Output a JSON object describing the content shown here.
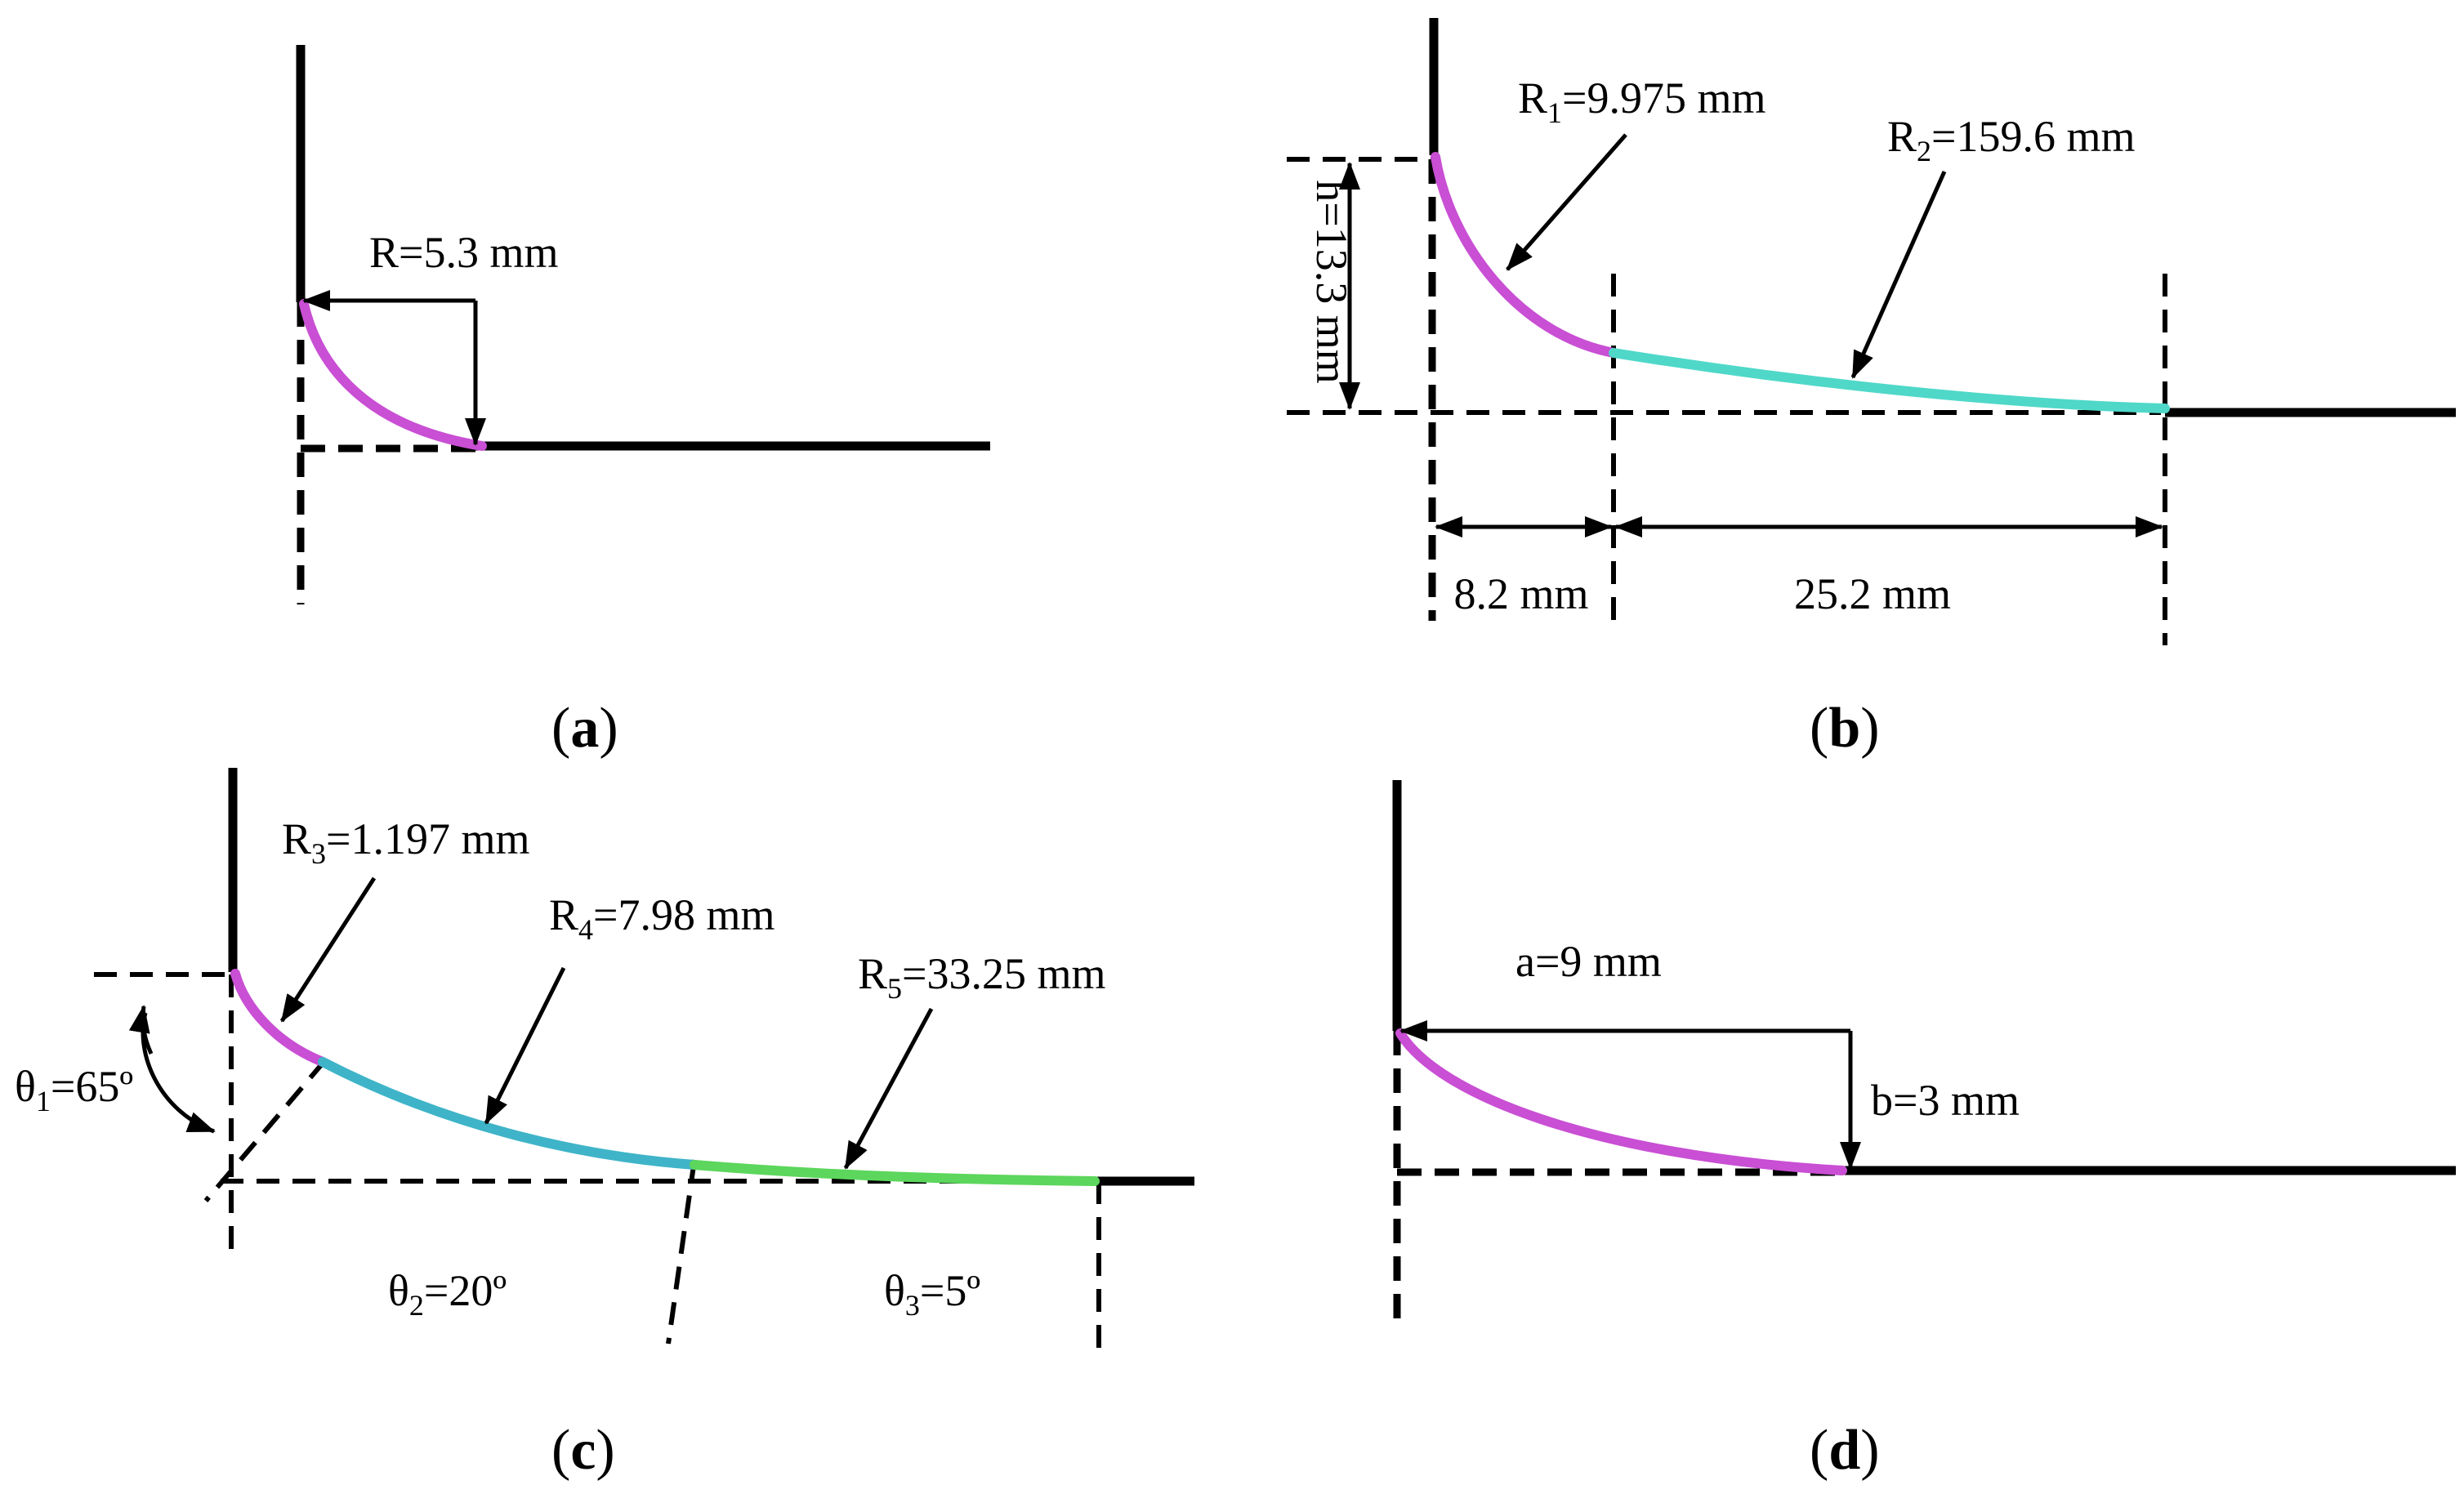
{
  "panels": {
    "a": {
      "caption_letter": "a",
      "radius_label": "R=5.3 mm",
      "curve_color": "#c94fd4"
    },
    "b": {
      "caption_letter": "b",
      "r1_main": "R",
      "r1_sub": "1",
      "r1_value": "=9.975 mm",
      "r2_main": "R",
      "r2_sub": "2",
      "r2_value": "=159.6 mm",
      "height_label": "h=13.3 mm",
      "width1_label": "8.2 mm",
      "width2_label": "25.2 mm",
      "curve1_color": "#c94fd4",
      "curve2_color": "#4fd8c8"
    },
    "c": {
      "caption_letter": "c",
      "r3_main": "R",
      "r3_sub": "3",
      "r3_value": "=1.197 mm",
      "r4_main": "R",
      "r4_sub": "4",
      "r4_value": "=7.98 mm",
      "r5_main": "R",
      "r5_sub": "5",
      "r5_value": "=33.25 mm",
      "theta1_main": "θ",
      "theta1_sub": "1",
      "theta1_value": "=65º",
      "theta2_main": "θ",
      "theta2_sub": "2",
      "theta2_value": "=20º",
      "theta3_main": "θ",
      "theta3_sub": "3",
      "theta3_value": "=5º",
      "curve1_color": "#c94fd4",
      "curve2_color": "#3fb4c8",
      "curve3_color": "#5cd65c"
    },
    "d": {
      "caption_letter": "d",
      "a_label": "a=9 mm",
      "b_label": "b=3 mm",
      "curve_color": "#c94fd4"
    }
  },
  "caption_open": "(",
  "caption_close": ")"
}
